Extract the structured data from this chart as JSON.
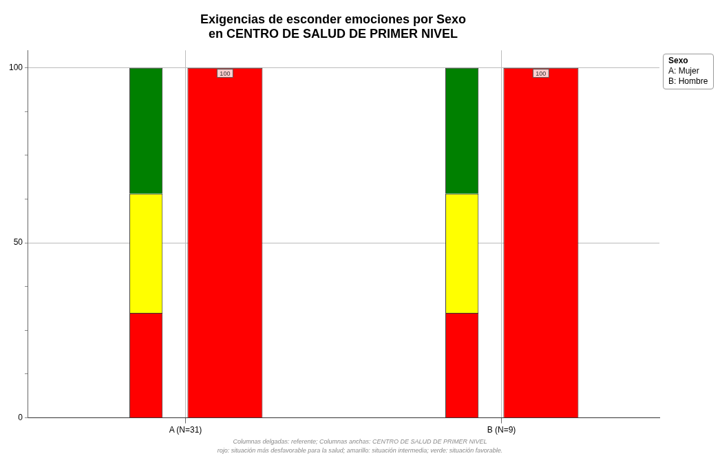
{
  "chart_data": {
    "type": "bar",
    "title": "Exigencias de esconder emociones por Sexo",
    "subtitle": "en CENTRO DE SALUD DE PRIMER NIVEL",
    "categories": [
      "A (N=31)",
      "B (N=9)"
    ],
    "series": [
      {
        "color": "#ff0000",
        "values": [
          30,
          30
        ],
        "base": [
          0,
          0
        ]
      },
      {
        "color": "#ffff00",
        "values": [
          34,
          34
        ],
        "base": [
          30,
          30
        ]
      },
      {
        "color": "#008000",
        "values": [
          36,
          36
        ],
        "base": [
          64,
          64
        ]
      },
      {
        "color": "#ff0000",
        "values": [
          100,
          100
        ],
        "value_labels": [
          "100",
          "100"
        ]
      }
    ],
    "ylim": [
      0,
      105
    ],
    "yticks": [
      0,
      {
        "value": 12.5,
        "label": null
      },
      {
        "value": 25,
        "label": null
      },
      {
        "value": 37.5,
        "label": null
      },
      50,
      {
        "value": 62.5,
        "label": null
      },
      {
        "value": 75,
        "label": null
      },
      {
        "value": 87.5,
        "label": null
      },
      100
    ],
    "grid": true,
    "legend_title": "Sexo",
    "annotations": [
      "A: Mujer",
      "B: Hombre",
      "Columnas delgadas: referente; Columnas anchas: CENTRO DE SALUD DE PRIMER NIVEL",
      "rojo: situación más desfavorable para la salud; amarillo: situación intermedia; verde: situación favorable."
    ]
  }
}
